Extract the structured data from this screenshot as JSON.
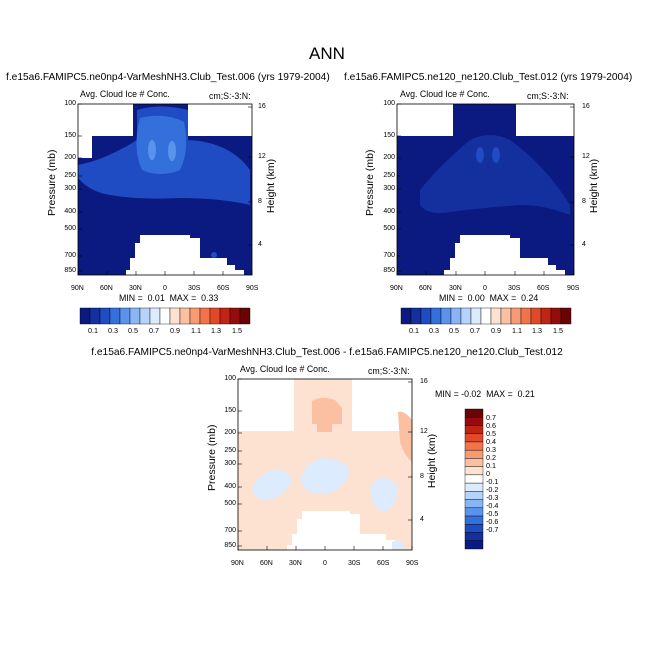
{
  "figure": {
    "title": "ANN"
  },
  "palette": {
    "ice": [
      "#0a1a80",
      "#13309e",
      "#1f4cc2",
      "#3470dc",
      "#5a93ec",
      "#8ab5f5",
      "#b6d3fb",
      "#dcebfe",
      "#ffffff",
      "#fde2d1",
      "#fbc0a2",
      "#f89b73",
      "#f2734a",
      "#e2492a",
      "#c02414",
      "#960c0c",
      "#6a0404"
    ],
    "diff": [
      "#0a1a80",
      "#13309e",
      "#1f4cc2",
      "#3470dc",
      "#5a93ec",
      "#8ab5f5",
      "#b6d3fb",
      "#dcebfe",
      "#ffffff",
      "#fde2d1",
      "#fbc0a2",
      "#f89b73",
      "#f2734a",
      "#e2492a",
      "#c02414",
      "#960c0c",
      "#6a0404"
    ]
  },
  "chart_data": [
    {
      "type": "contour",
      "title": "f.e15a6.FAMIPC5.ne0np4-VarMeshNH3.Club_Test.006 (yrs 1979-2004)",
      "subtitle_left": "Avg. Cloud Ice # Conc.",
      "subtitle_right": "cm;S:-3:N:",
      "xlabel": "",
      "ylabel": "Pressure (mb)",
      "y2label": "Height (km)",
      "xticks": [
        "90N",
        "60N",
        "30N",
        "0",
        "30S",
        "60S",
        "90S"
      ],
      "yticks": [
        "100",
        "150",
        "200",
        "250",
        "300",
        "400",
        "500",
        "700",
        "850"
      ],
      "y2ticks": [
        "16",
        "12",
        "8",
        "4"
      ],
      "stats": "MIN =  0.01  MAX =  0.33",
      "colorbar_labels": [
        "0.1",
        "0.3",
        "0.5",
        "0.7",
        "0.9",
        "1.1",
        "1.3",
        "1.5"
      ]
    },
    {
      "type": "contour",
      "title": "f.e15a6.FAMIPC5.ne120_ne120.Club_Test.012 (yrs 1979-2004)",
      "subtitle_left": "Avg. Cloud Ice # Conc.",
      "subtitle_right": "cm;S:-3:N:",
      "xlabel": "",
      "ylabel": "Pressure (mb)",
      "y2label": "Height (km)",
      "xticks": [
        "90N",
        "60N",
        "30N",
        "0",
        "30S",
        "60S",
        "90S"
      ],
      "yticks": [
        "100",
        "150",
        "200",
        "250",
        "300",
        "400",
        "500",
        "700",
        "850"
      ],
      "y2ticks": [
        "16",
        "12",
        "8",
        "4"
      ],
      "stats": "MIN =  0.00  MAX =  0.24",
      "colorbar_labels": [
        "0.1",
        "0.3",
        "0.5",
        "0.7",
        "0.9",
        "1.1",
        "1.3",
        "1.5"
      ]
    },
    {
      "type": "contour",
      "title": "f.e15a6.FAMIPC5.ne0np4-VarMeshNH3.Club_Test.006 - f.e15a6.FAMIPC5.ne120_ne120.Club_Test.012",
      "subtitle_left": "Avg. Cloud Ice # Conc.",
      "subtitle_right": "cm;S:-3:N:",
      "xlabel": "",
      "ylabel": "Pressure (mb)",
      "y2label": "Height (km)",
      "xticks": [
        "90N",
        "60N",
        "30N",
        "0",
        "30S",
        "60S",
        "90S"
      ],
      "yticks": [
        "100",
        "150",
        "200",
        "250",
        "300",
        "400",
        "500",
        "700",
        "850"
      ],
      "y2ticks": [
        "16",
        "12",
        "8",
        "4"
      ],
      "stats": "MIN = -0.02  MAX =  0.21",
      "colorbar_labels": [
        "0.7",
        "0.6",
        "0.5",
        "0.4",
        "0.3",
        "0.2",
        "0.1",
        "0",
        "-0.1",
        "-0.2",
        "-0.3",
        "-0.4",
        "-0.5",
        "-0.6",
        "-0.7"
      ]
    }
  ]
}
